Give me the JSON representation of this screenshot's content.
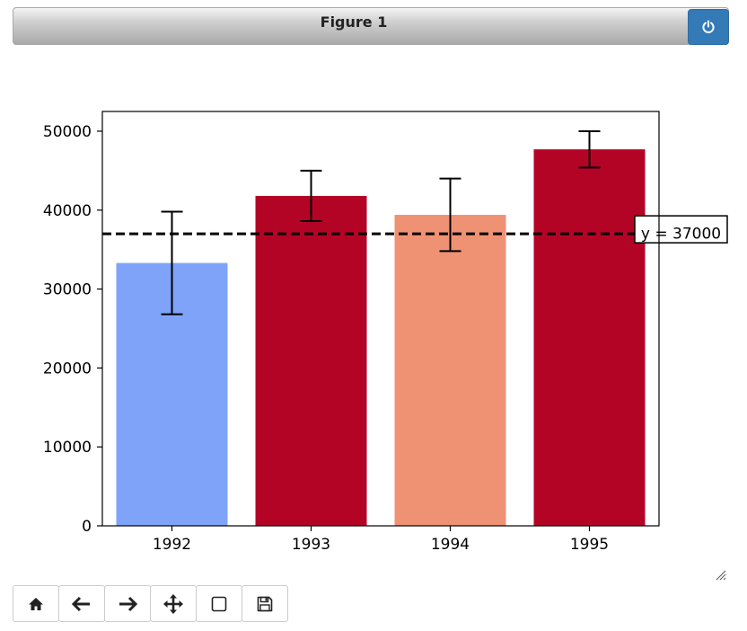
{
  "window": {
    "title": "Figure 1",
    "power_icon": "power-icon"
  },
  "toolbar": {
    "buttons": [
      {
        "name": "home-button",
        "icon": "home-icon"
      },
      {
        "name": "back-button",
        "icon": "arrow-left-icon"
      },
      {
        "name": "forward-button",
        "icon": "arrow-right-icon"
      },
      {
        "name": "pan-button",
        "icon": "move-icon"
      },
      {
        "name": "zoom-button",
        "icon": "square-icon"
      },
      {
        "name": "save-button",
        "icon": "floppy-icon"
      }
    ]
  },
  "chart_data": {
    "type": "bar",
    "categories": [
      "1992",
      "1993",
      "1994",
      "1995"
    ],
    "values": [
      33300,
      41800,
      39400,
      47700
    ],
    "errors": [
      6500,
      3200,
      4600,
      2300
    ],
    "bar_colors": [
      "#7fa3f8",
      "#b40426",
      "#ef9273",
      "#b40426"
    ],
    "yticks": [
      0,
      10000,
      20000,
      30000,
      40000,
      50000
    ],
    "ylim": [
      0,
      52500
    ],
    "reference_line": {
      "y": 37000,
      "label": "y = 37000",
      "style": "dashed",
      "color": "#000000"
    },
    "title": "",
    "xlabel": "",
    "ylabel": "",
    "grid": false
  }
}
